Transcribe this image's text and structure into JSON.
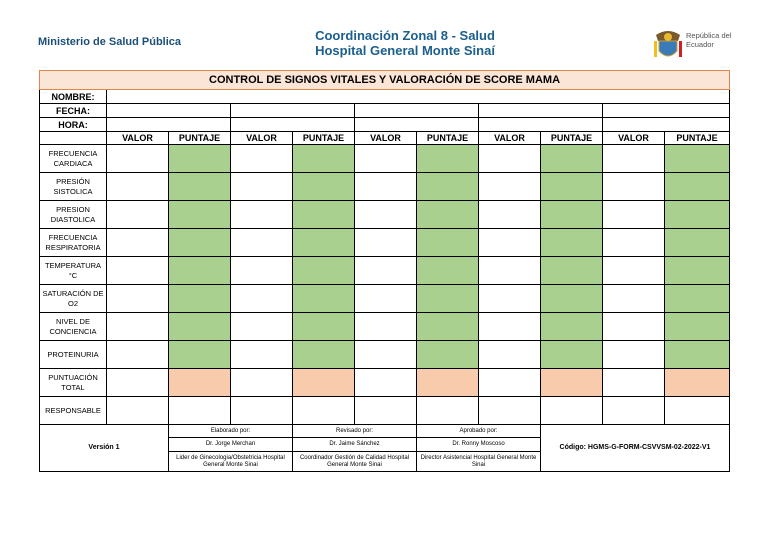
{
  "header": {
    "ministry": "Ministerio de Salud Pública",
    "zone": "Coordinación Zonal 8 - Salud",
    "hospital": "Hospital General Monte Sinaí",
    "republic": "República del Ecuador"
  },
  "table": {
    "title": "CONTROL DE SIGNOS VITALES Y VALORACIÓN DE SCORE MAMA",
    "fields": [
      "NOMBRE:",
      "FECHA:",
      "HORA:"
    ],
    "column_headers": [
      "VALOR",
      "PUNTAJE",
      "VALOR",
      "PUNTAJE",
      "VALOR",
      "PUNTAJE",
      "VALOR",
      "PUNTAJE",
      "VALOR",
      "PUNTAJE"
    ],
    "rows": [
      "FRECUENCIA CARDIACA",
      "PRESIÓN SISTOLICA",
      "PRESION DIASTOLICA",
      "FRECUENCIA RESPIRATORIA",
      "TEMPERATURA °C",
      "SATURACIÓN DE O2",
      "NIVEL DE CONCIENCIA",
      "PROTEINURIA",
      "PUNTUACIÓN TOTAL",
      "RESPONSABLE"
    ]
  },
  "footer": {
    "version": "Versión 1",
    "signatures": [
      {
        "heading": "Elaborado por:",
        "name": "Dr. Jorge Merchan",
        "role": "Lider de Ginecologia/Obstetricia Hospital General Monte Sinai"
      },
      {
        "heading": "Revisado por:",
        "name": "Dr. Jaime Sánchez",
        "role": "Coordinador Gestión de Calidad Hospital General Monte Sinai"
      },
      {
        "heading": "Aprobado por:",
        "name": "Dr. Ronny Moscoso",
        "role": "Director Asistencial Hospital General Monte Sinai"
      }
    ],
    "code": "Código: HGMS-G-FORM-CSVVSM-02-2022-V1"
  }
}
